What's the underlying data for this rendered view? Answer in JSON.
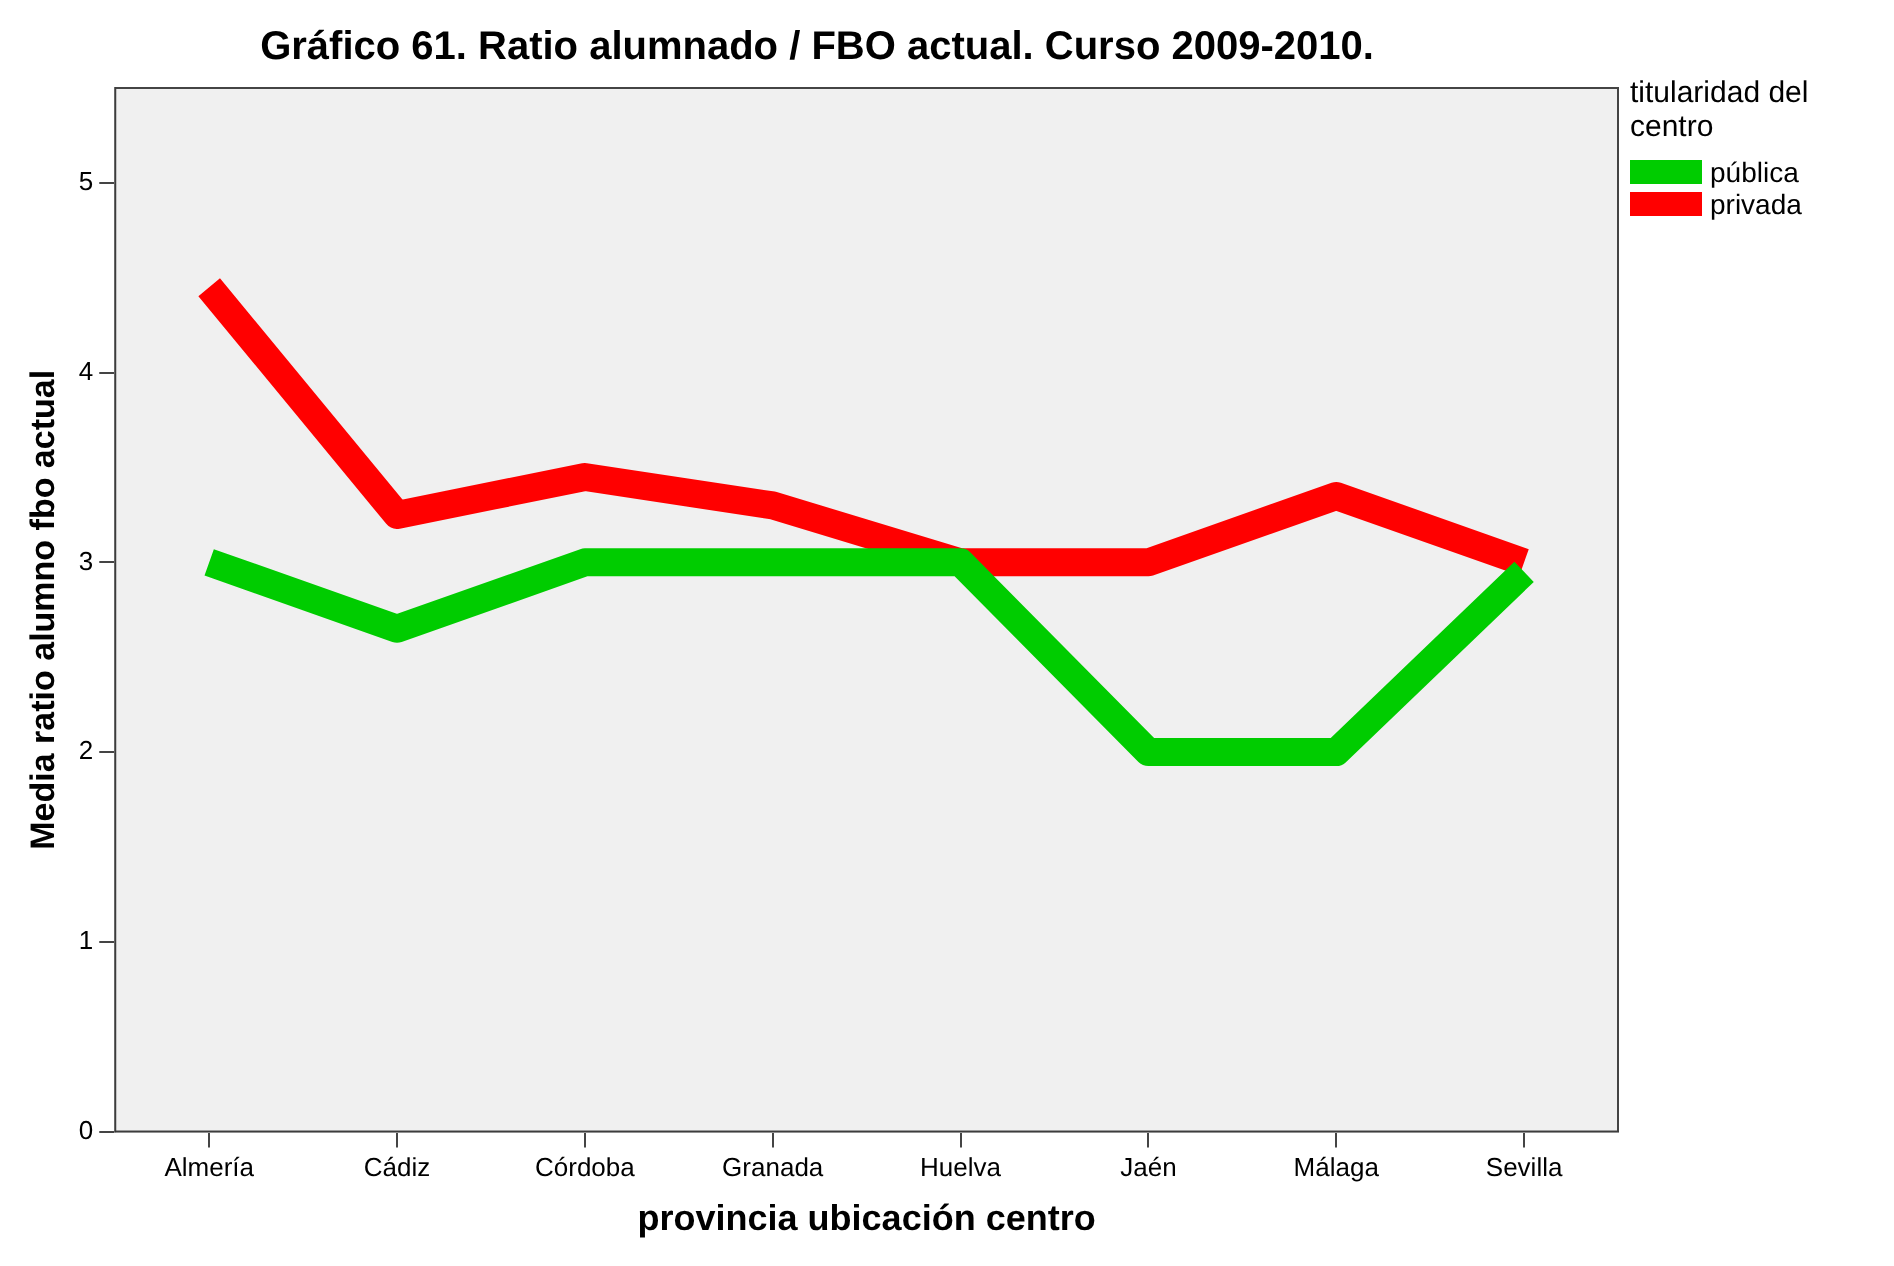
{
  "chart_data": {
    "type": "line",
    "title": "Gráfico 61. Ratio alumnado / FBO actual. Curso 2009-2010.",
    "xlabel": "provincia ubicación centro",
    "ylabel": "Media ratio alumno fbo actual",
    "legend_title": "titularidad del centro",
    "categories": [
      "Almería",
      "Cádiz",
      "Córdoba",
      "Granada",
      "Huelva",
      "Jaén",
      "Málaga",
      "Sevilla"
    ],
    "series": [
      {
        "name": "pública",
        "color": "#00cc00",
        "values": [
          3.0,
          2.65,
          3.0,
          3.0,
          3.0,
          2.0,
          2.0,
          2.95
        ]
      },
      {
        "name": "privada",
        "color": "#ff0000",
        "values": [
          4.45,
          3.25,
          3.45,
          3.3,
          3.0,
          3.0,
          3.35,
          3.0
        ]
      }
    ],
    "ylim": [
      0,
      5.5
    ],
    "yticks": [
      0,
      1,
      2,
      3,
      4,
      5
    ],
    "grid": false,
    "legend": "top right",
    "marker": "none",
    "line_style": "solid"
  }
}
